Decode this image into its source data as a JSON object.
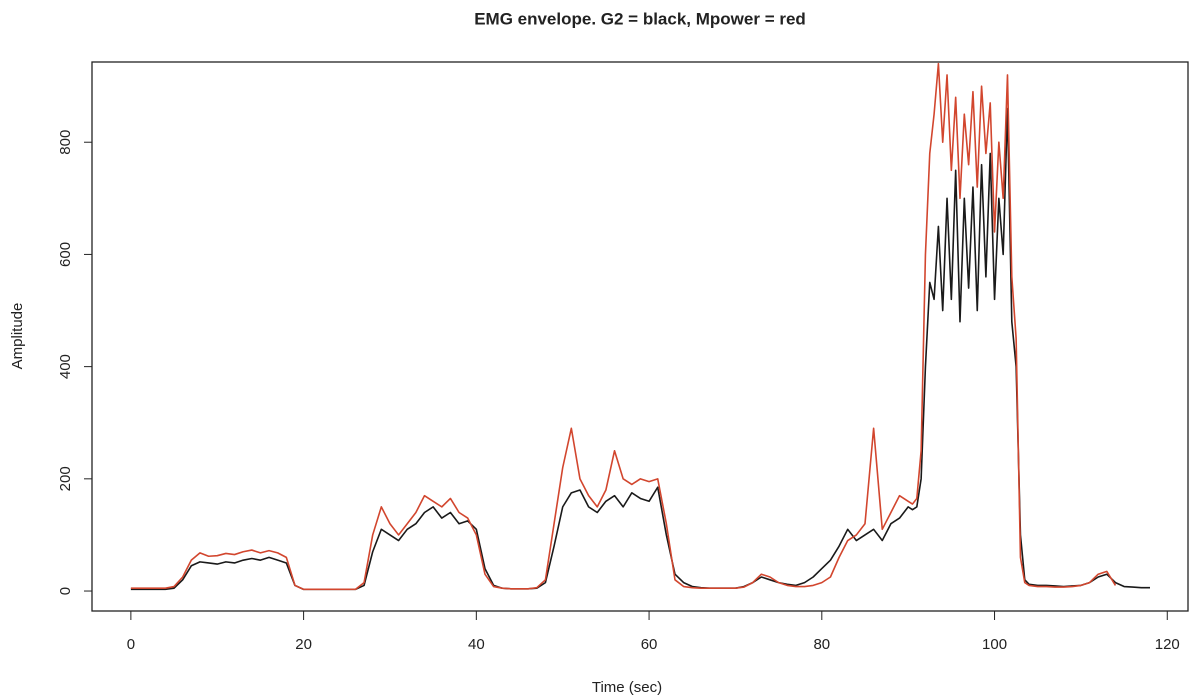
{
  "chart_data": {
    "type": "line",
    "title": "EMG envelope. G2 = black, Mpower = red",
    "x_label": "Time (sec)",
    "y_label": "Amplitude",
    "xlim": [
      -4.5,
      122.4
    ],
    "ylim": [
      -35.6,
      943
    ],
    "xticks": [
      0,
      20,
      40,
      60,
      80,
      100,
      120
    ],
    "yticks": [
      0,
      200,
      400,
      600,
      800
    ],
    "x": [
      0,
      1,
      2,
      3,
      4,
      5,
      6,
      7,
      8,
      9,
      10,
      11,
      12,
      13,
      14,
      15,
      16,
      17,
      18,
      19,
      20,
      21,
      22,
      23,
      24,
      25,
      26,
      27,
      28,
      29,
      30,
      31,
      32,
      33,
      34,
      35,
      36,
      37,
      38,
      39,
      40,
      41,
      42,
      43,
      44,
      45,
      46,
      47,
      48,
      49,
      50,
      51,
      52,
      53,
      54,
      55,
      56,
      57,
      58,
      59,
      60,
      61,
      62,
      63,
      64,
      65,
      66,
      67,
      68,
      69,
      70,
      71,
      72,
      73,
      74,
      75,
      76,
      77,
      78,
      79,
      80,
      81,
      82,
      83,
      84,
      85,
      86,
      87,
      88,
      89,
      90,
      90.5,
      91,
      91.5,
      92,
      92.5,
      93,
      93.5,
      94,
      94.5,
      95,
      95.5,
      96,
      96.5,
      97,
      97.5,
      98,
      98.5,
      99,
      99.5,
      100,
      100.5,
      101,
      101.5,
      102,
      102.5,
      103,
      103.5,
      104,
      105,
      106,
      107,
      108,
      109,
      110,
      111,
      112,
      113,
      114,
      115,
      116,
      117,
      118
    ],
    "series": [
      {
        "color": "#1a1a1a",
        "values": [
          3,
          3,
          3,
          3,
          3,
          5,
          20,
          45,
          52,
          50,
          48,
          52,
          50,
          55,
          58,
          55,
          60,
          55,
          50,
          10,
          3,
          3,
          3,
          3,
          3,
          3,
          3,
          10,
          70,
          110,
          100,
          90,
          110,
          120,
          140,
          150,
          130,
          140,
          120,
          125,
          110,
          40,
          10,
          5,
          4,
          4,
          4,
          5,
          15,
          80,
          150,
          175,
          180,
          150,
          140,
          160,
          170,
          150,
          175,
          165,
          160,
          185,
          100,
          30,
          15,
          8,
          6,
          5,
          5,
          5,
          5,
          8,
          15,
          25,
          20,
          15,
          12,
          10,
          15,
          25,
          40,
          55,
          80,
          110,
          90,
          100,
          110,
          90,
          120,
          130,
          150,
          145,
          150,
          200,
          400,
          550,
          520,
          650,
          500,
          700,
          520,
          750,
          480,
          700,
          540,
          720,
          500,
          760,
          560,
          780,
          520,
          700,
          600,
          860,
          480,
          400,
          100,
          20,
          12,
          10,
          10,
          9,
          8,
          9,
          10,
          15,
          25,
          30,
          15,
          8,
          7,
          6,
          6
        ]
      },
      {
        "color": "#d2462e",
        "values": [
          5,
          5,
          5,
          5,
          5,
          8,
          25,
          55,
          68,
          62,
          63,
          67,
          65,
          70,
          73,
          68,
          72,
          68,
          60,
          10,
          3,
          3,
          3,
          3,
          3,
          3,
          3,
          15,
          100,
          150,
          120,
          100,
          120,
          140,
          170,
          160,
          150,
          165,
          140,
          130,
          100,
          30,
          8,
          5,
          4,
          4,
          4,
          6,
          20,
          120,
          220,
          290,
          200,
          170,
          150,
          180,
          250,
          200,
          190,
          200,
          195,
          200,
          120,
          20,
          8,
          6,
          5,
          5,
          5,
          5,
          5,
          7,
          15,
          30,
          25,
          15,
          10,
          8,
          8,
          10,
          15,
          25,
          60,
          90,
          100,
          120,
          290,
          110,
          140,
          170,
          160,
          155,
          165,
          250,
          600,
          780,
          850,
          940,
          800,
          920,
          750,
          880,
          700,
          850,
          760,
          890,
          720,
          900,
          780,
          870,
          640,
          800,
          700,
          920,
          560,
          450,
          60,
          15,
          10,
          8,
          8,
          7,
          7,
          8,
          10,
          15,
          30,
          35,
          10,
          null,
          null,
          null,
          null
        ]
      }
    ]
  }
}
